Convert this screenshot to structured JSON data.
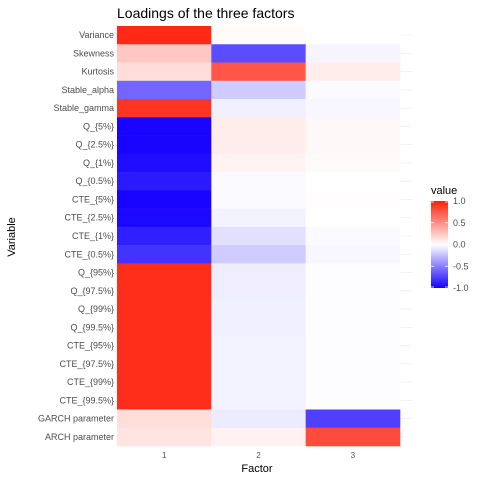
{
  "chart_data": {
    "type": "heatmap",
    "title": "Loadings of the three factors",
    "xlabel": "Factor",
    "ylabel": "Variable",
    "x": [
      "1",
      "2",
      "3"
    ],
    "y": [
      "Variance",
      "Skewness",
      "Kurtosis",
      "Stable_alpha",
      "Stable_gamma",
      "Q_{5%}",
      "Q_{2.5%}",
      "Q_{1%}",
      "Q_{0.5%}",
      "CTE_{5%}",
      "CTE_{2.5%}",
      "CTE_{1%}",
      "CTE_{0.5%}",
      "Q_{95%}",
      "Q_{97.5%}",
      "Q_{99%}",
      "Q_{99.5%}",
      "CTE_{95%}",
      "CTE_{97.5%}",
      "CTE_{99%}",
      "CTE_{99.5%}",
      "GARCH parameter",
      "ARCH parameter"
    ],
    "values": [
      [
        0.95,
        0.02,
        0.0
      ],
      [
        0.25,
        -0.7,
        -0.04
      ],
      [
        0.15,
        0.75,
        0.08
      ],
      [
        -0.6,
        -0.2,
        -0.02
      ],
      [
        0.9,
        -0.06,
        -0.03
      ],
      [
        -0.98,
        0.08,
        0.03
      ],
      [
        -0.98,
        0.08,
        0.03
      ],
      [
        -0.95,
        0.05,
        0.02
      ],
      [
        -0.9,
        -0.02,
        0.0
      ],
      [
        -0.98,
        -0.02,
        0.01
      ],
      [
        -0.97,
        -0.05,
        0.0
      ],
      [
        -0.88,
        -0.12,
        -0.02
      ],
      [
        -0.8,
        -0.2,
        -0.03
      ],
      [
        0.93,
        -0.07,
        -0.01
      ],
      [
        0.93,
        -0.07,
        -0.01
      ],
      [
        0.93,
        -0.06,
        -0.01
      ],
      [
        0.93,
        -0.06,
        -0.01
      ],
      [
        0.93,
        -0.05,
        -0.01
      ],
      [
        0.93,
        -0.05,
        -0.01
      ],
      [
        0.93,
        -0.05,
        -0.01
      ],
      [
        0.93,
        -0.05,
        -0.01
      ],
      [
        0.15,
        -0.08,
        -0.75
      ],
      [
        0.12,
        0.06,
        0.8
      ]
    ],
    "legend": {
      "title": "value",
      "ticks": [
        1.0,
        0.5,
        0.0,
        -0.5,
        -1.0
      ],
      "tick_labels": [
        "1.0",
        "0.5",
        "0.0",
        "-0.5",
        "-1.0"
      ],
      "range": [
        -1,
        1
      ],
      "placement": "right"
    },
    "colors": {
      "low": "#1400ff",
      "mid": "#ffffff",
      "high": "#ff1e0a"
    },
    "grid": true
  }
}
